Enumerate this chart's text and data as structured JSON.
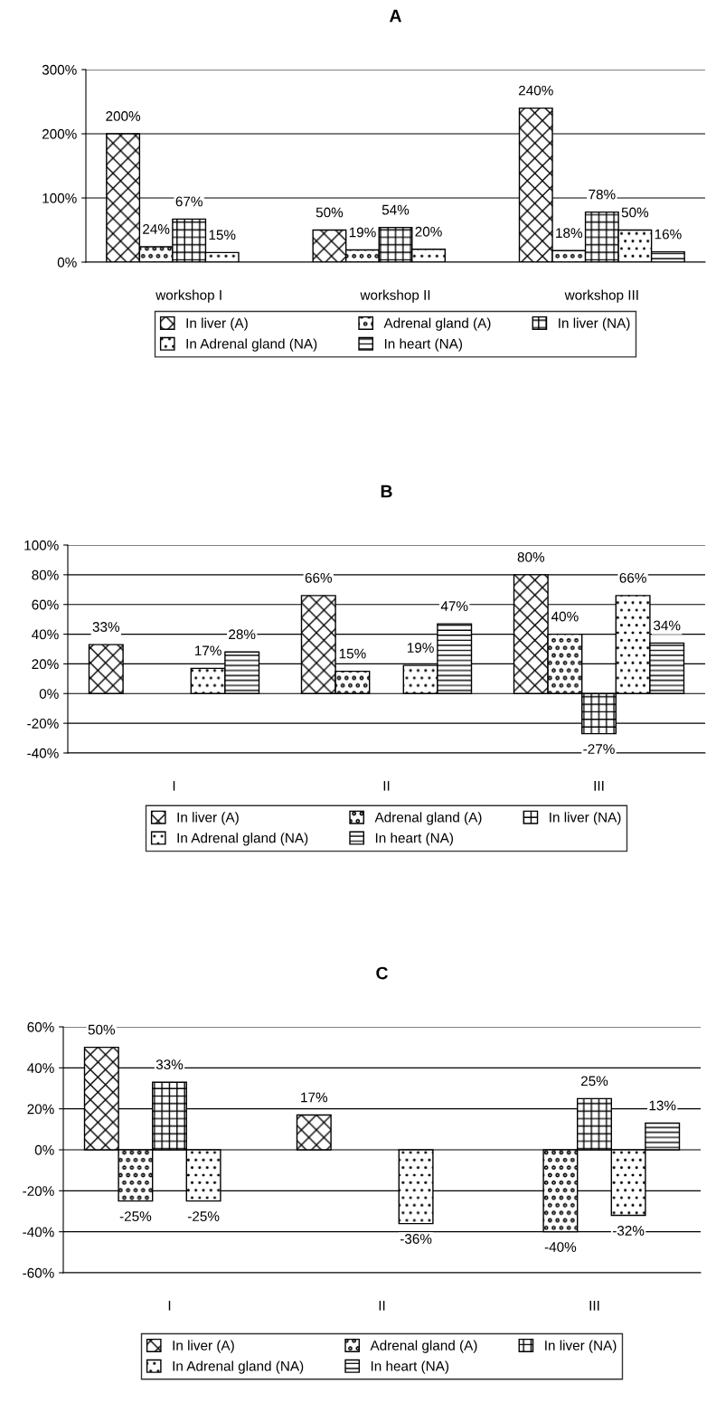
{
  "chart_data": [
    {
      "type": "bar",
      "title": "A",
      "categories": [
        "workshop I",
        "workshop II",
        "workshop III"
      ],
      "ylim": [
        0,
        300
      ],
      "yticks": [
        {
          "value": 0,
          "label": "0%"
        },
        {
          "value": 100,
          "label": "100%"
        },
        {
          "value": 200,
          "label": "200%"
        },
        {
          "value": 300,
          "label": "300%"
        }
      ],
      "grid": "y",
      "legend": "bottom",
      "series": [
        {
          "name": "In liver (A)",
          "color": "#000000",
          "values": [
            200,
            50,
            240
          ],
          "value_labels": [
            "200%",
            "50%",
            "240%"
          ]
        },
        {
          "name": "Adrenal gland (A)",
          "color": "#000000",
          "values": [
            24,
            19,
            18
          ],
          "value_labels": [
            "24%",
            "19%",
            "18%"
          ]
        },
        {
          "name": "In liver (NA)",
          "color": "#000000",
          "values": [
            67,
            54,
            78
          ],
          "value_labels": [
            "67%",
            "54%",
            "78%"
          ]
        },
        {
          "name": "In Adrenal gland (NA)",
          "color": "#000000",
          "values": [
            15,
            20,
            50
          ],
          "value_labels": [
            "15%",
            "20%",
            "50%"
          ]
        },
        {
          "name": "In heart (NA)",
          "color": "#000000",
          "values": [
            null,
            null,
            16
          ],
          "value_labels": [
            null,
            null,
            "16%"
          ]
        }
      ]
    },
    {
      "type": "bar",
      "title": "B",
      "categories": [
        "I",
        "II",
        "III"
      ],
      "ylim": [
        -40,
        100
      ],
      "yticks": [
        {
          "value": -40,
          "label": "-40%"
        },
        {
          "value": -20,
          "label": "-20%"
        },
        {
          "value": 0,
          "label": "0%"
        },
        {
          "value": 20,
          "label": "20%"
        },
        {
          "value": 40,
          "label": "40%"
        },
        {
          "value": 60,
          "label": "60%"
        },
        {
          "value": 80,
          "label": "80%"
        },
        {
          "value": 100,
          "label": "100%"
        }
      ],
      "grid": "y",
      "legend": "bottom",
      "series": [
        {
          "name": "In liver (A)",
          "color": "#000000",
          "values": [
            33,
            66,
            80
          ],
          "value_labels": [
            "33%",
            "66%",
            "80%"
          ]
        },
        {
          "name": "Adrenal gland (A)",
          "color": "#000000",
          "values": [
            null,
            15,
            40
          ],
          "value_labels": [
            null,
            "15%",
            "40%"
          ]
        },
        {
          "name": "In liver (NA)",
          "color": "#000000",
          "values": [
            null,
            null,
            -27
          ],
          "value_labels": [
            null,
            null,
            "-27%"
          ]
        },
        {
          "name": "In Adrenal gland (NA)",
          "color": "#000000",
          "values": [
            17,
            19,
            66
          ],
          "value_labels": [
            "17%",
            "19%",
            "66%"
          ]
        },
        {
          "name": "In heart (NA)",
          "color": "#000000",
          "values": [
            28,
            47,
            34
          ],
          "value_labels": [
            "28%",
            "47%",
            "34%"
          ]
        }
      ]
    },
    {
      "type": "bar",
      "title": "C",
      "categories": [
        "I",
        "II",
        "III"
      ],
      "ylim": [
        -60,
        60
      ],
      "yticks": [
        {
          "value": -60,
          "label": "-60%"
        },
        {
          "value": -40,
          "label": "-40%"
        },
        {
          "value": -20,
          "label": "-20%"
        },
        {
          "value": 0,
          "label": "0%"
        },
        {
          "value": 20,
          "label": "20%"
        },
        {
          "value": 40,
          "label": "40%"
        },
        {
          "value": 60,
          "label": "60%"
        }
      ],
      "grid": "y",
      "legend": "bottom",
      "series": [
        {
          "name": "In liver (A)",
          "color": "#000000",
          "values": [
            50,
            17,
            null
          ],
          "value_labels": [
            "50%",
            "17%",
            null
          ]
        },
        {
          "name": "Adrenal gland (A)",
          "color": "#000000",
          "values": [
            -25,
            null,
            -40
          ],
          "value_labels": [
            "-25%",
            null,
            "-40%"
          ]
        },
        {
          "name": "In liver (NA)",
          "color": "#000000",
          "values": [
            33,
            null,
            25
          ],
          "value_labels": [
            "33%",
            null,
            "25%"
          ]
        },
        {
          "name": "In Adrenal gland (NA)",
          "color": "#000000",
          "values": [
            -25,
            -36,
            -32
          ],
          "value_labels": [
            "-25%",
            "-36%",
            "-32%"
          ]
        },
        {
          "name": "In heart (NA)",
          "color": "#000000",
          "values": [
            null,
            null,
            13
          ],
          "value_labels": [
            null,
            null,
            "13%"
          ]
        }
      ]
    }
  ]
}
